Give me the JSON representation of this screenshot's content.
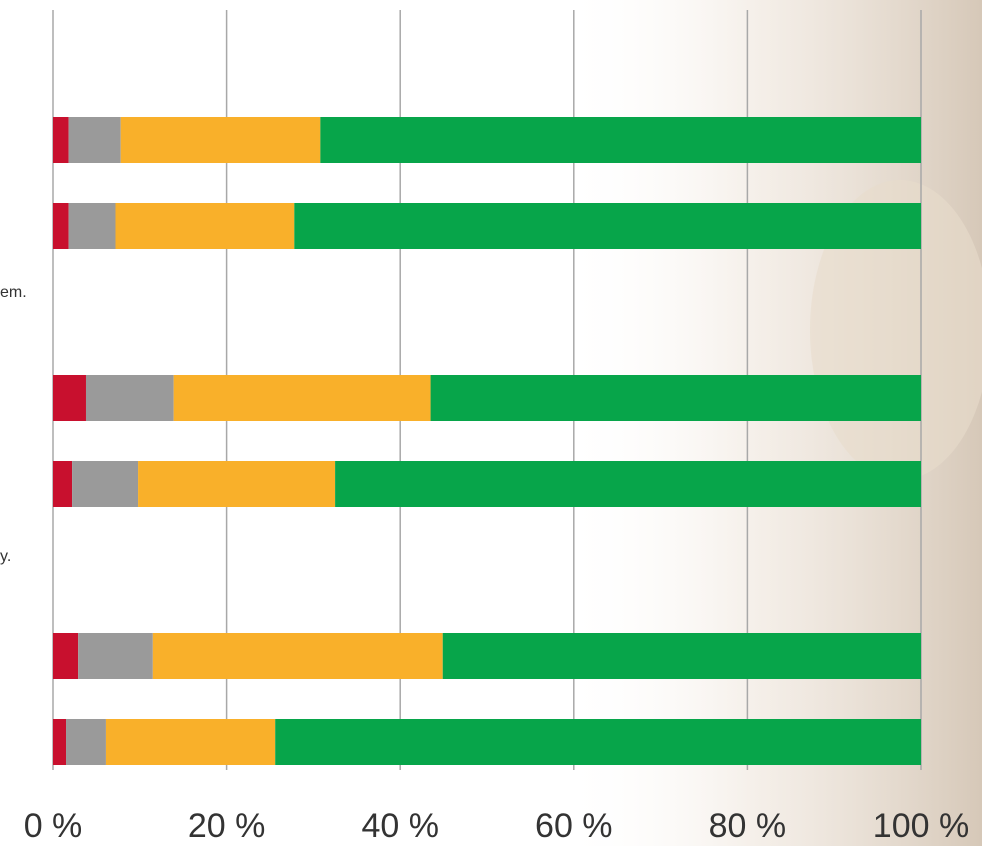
{
  "chart_data": {
    "type": "stacked-bar",
    "orientation": "horizontal",
    "categories": [
      null,
      null,
      null,
      null,
      null,
      null,
      null,
      null
    ],
    "annotations": [
      "em.",
      "y."
    ],
    "series": [
      {
        "color": "#c8102e",
        "values": [
          1.8,
          1.8,
          null,
          3.8,
          2.2,
          null,
          2.9,
          1.5
        ]
      },
      {
        "color": "#9a9a9a",
        "values": [
          6.0,
          5.4,
          null,
          10.1,
          7.6,
          null,
          8.6,
          4.6
        ]
      },
      {
        "color": "#f9b02a",
        "values": [
          23.0,
          20.6,
          null,
          29.6,
          22.7,
          null,
          33.4,
          19.5
        ]
      },
      {
        "color": "#07a54a",
        "values": [
          69.2,
          72.2,
          null,
          56.5,
          67.5,
          null,
          55.1,
          74.4
        ]
      }
    ],
    "xlim": [
      0,
      100
    ],
    "xticks": [
      {
        "value": 0,
        "label": "0 %"
      },
      {
        "value": 20,
        "label": "20 %"
      },
      {
        "value": 40,
        "label": "40 %"
      },
      {
        "value": 60,
        "label": "60 %"
      },
      {
        "value": 80,
        "label": "80 %"
      },
      {
        "value": 100,
        "label": "100 %"
      }
    ],
    "grid": true
  }
}
